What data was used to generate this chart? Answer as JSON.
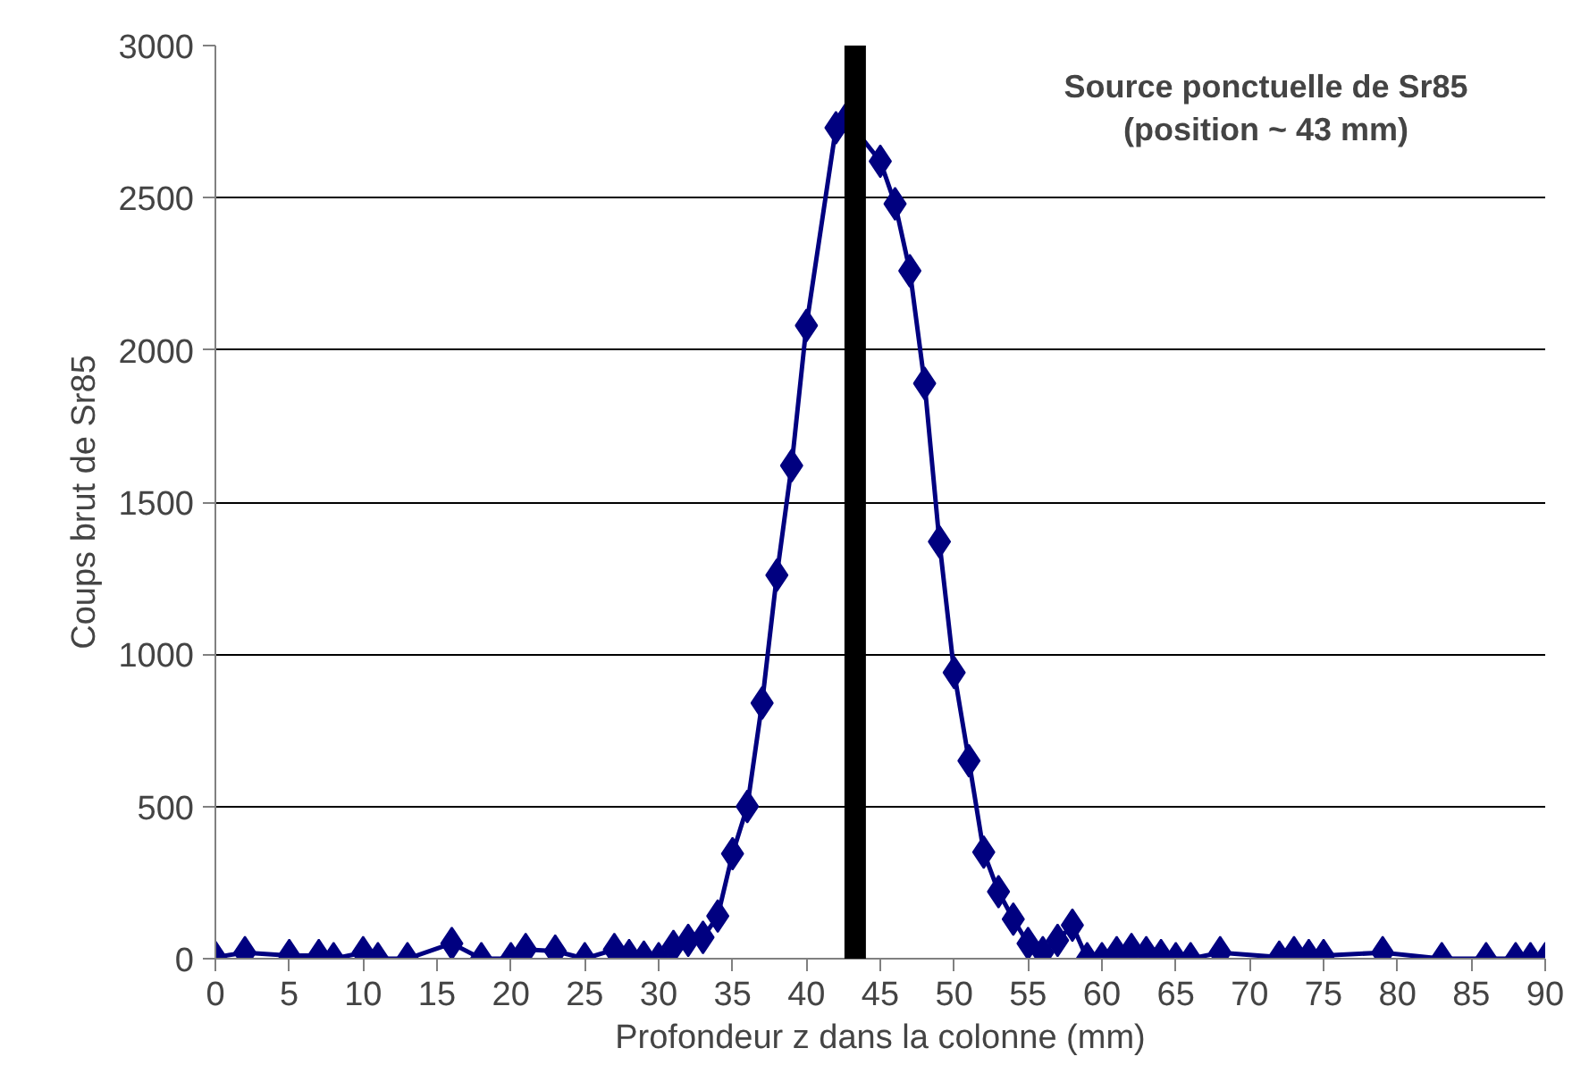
{
  "chart_data": {
    "type": "line",
    "xlabel": "Profondeur z dans la colonne (mm)",
    "ylabel": "Coups brut de Sr85",
    "annotations": [
      "Source ponctuelle de Sr85\n(position ~ 43 mm)"
    ],
    "x": [
      0,
      2,
      5,
      7,
      8,
      10,
      11,
      13,
      16,
      18,
      20,
      21,
      23,
      25,
      27,
      28,
      29,
      30,
      31,
      32,
      33,
      34,
      35,
      36,
      37,
      38,
      39,
      40,
      42,
      42.7,
      45,
      46,
      47,
      48,
      49,
      50,
      51,
      52,
      53,
      54,
      55,
      56,
      57,
      58,
      59,
      60,
      61,
      62,
      63,
      64,
      65,
      66,
      68,
      72,
      73,
      74,
      75,
      79,
      83,
      86,
      88,
      89,
      90
    ],
    "series": [
      {
        "color": "#000080",
        "values": [
          5,
          20,
          10,
          10,
          0,
          20,
          0,
          0,
          50,
          0,
          0,
          30,
          25,
          0,
          30,
          10,
          5,
          0,
          40,
          60,
          70,
          140,
          345,
          500,
          840,
          1260,
          1620,
          2080,
          2730,
          2760,
          2620,
          2480,
          2260,
          1890,
          1370,
          940,
          650,
          350,
          220,
          130,
          50,
          20,
          60,
          110,
          0,
          0,
          20,
          30,
          20,
          10,
          0,
          0,
          20,
          5,
          20,
          10,
          10,
          20,
          0,
          0,
          0,
          0,
          0
        ]
      }
    ],
    "xlim": [
      0,
      90
    ],
    "xticks": [
      0,
      5,
      10,
      15,
      20,
      25,
      30,
      35,
      40,
      45,
      50,
      55,
      60,
      65,
      70,
      75,
      80,
      85,
      90
    ],
    "ylim": [
      0,
      3000
    ],
    "yticks": [
      0,
      500,
      1000,
      1500,
      2000,
      2500,
      3000
    ],
    "grid": "y",
    "marker": "diamond",
    "ref_lines": [
      {
        "axis": "x",
        "value": 43.3,
        "color": "#000000"
      }
    ]
  }
}
